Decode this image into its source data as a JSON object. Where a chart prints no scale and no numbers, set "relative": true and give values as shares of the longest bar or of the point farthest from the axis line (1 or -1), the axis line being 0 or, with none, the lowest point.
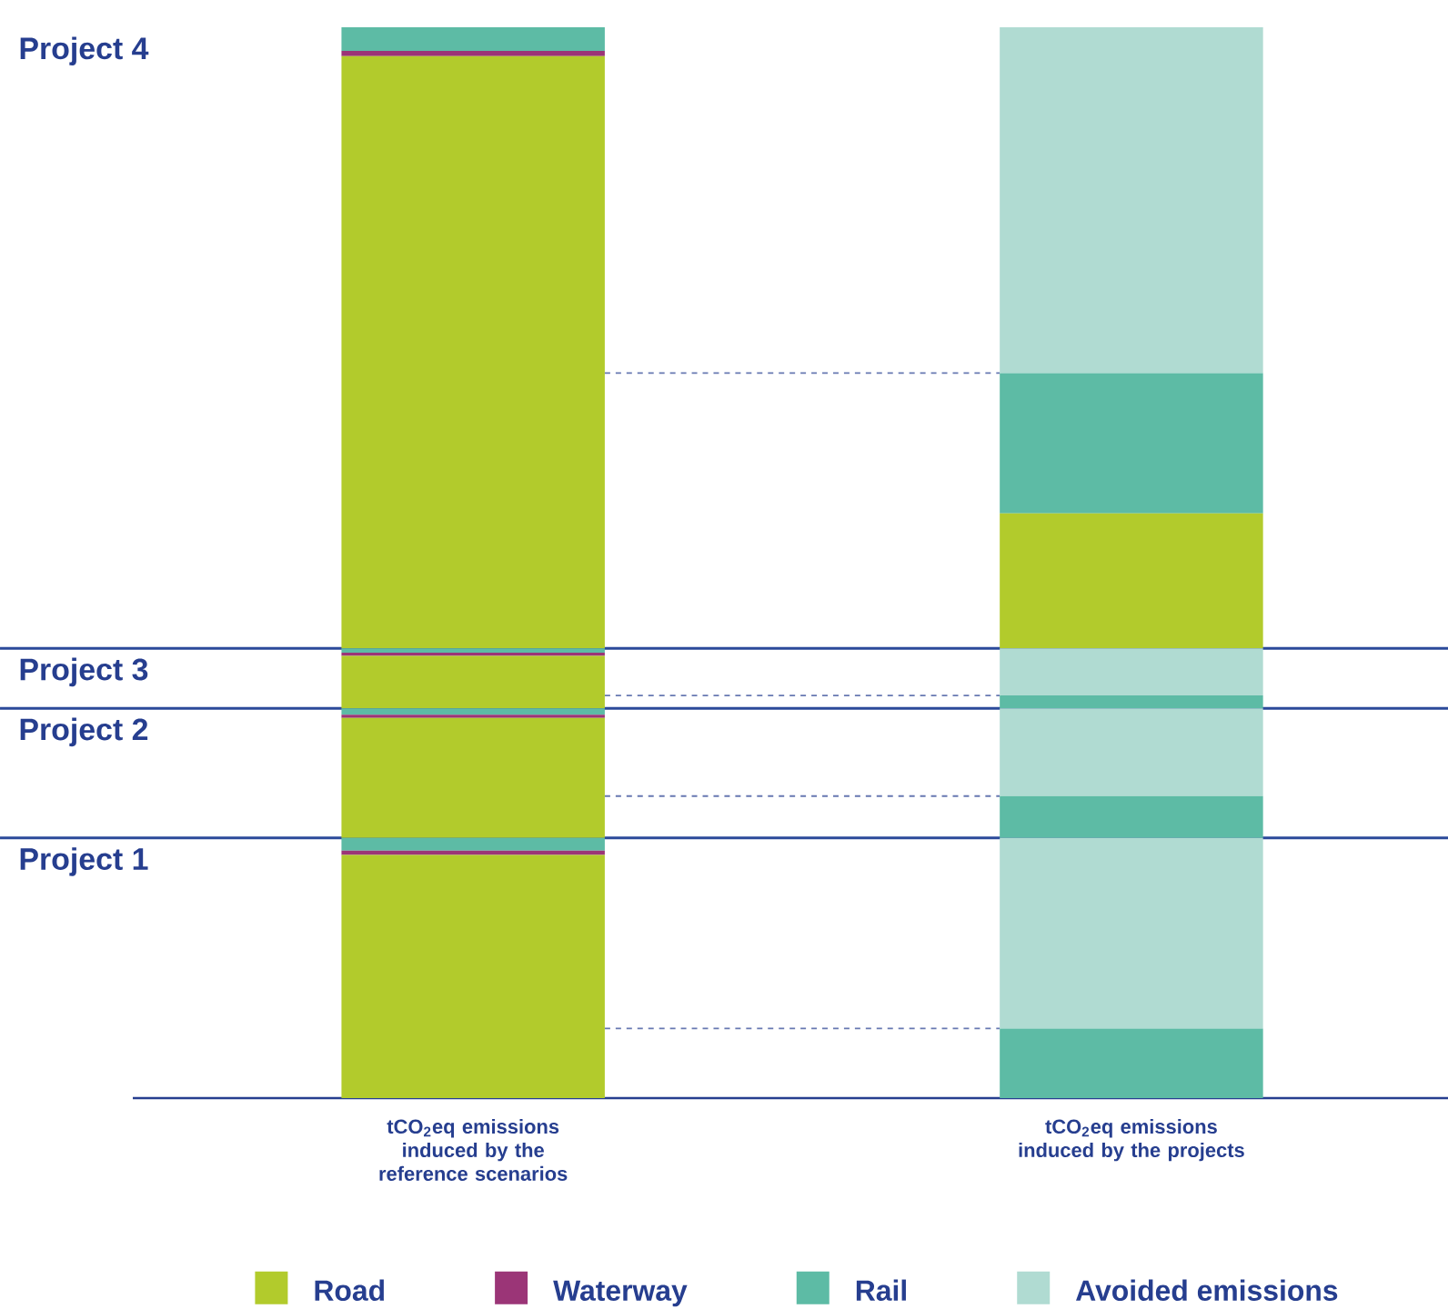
{
  "chart_data": {
    "type": "bar",
    "stacked": true,
    "relative": true,
    "legend": "bottom",
    "categories": [
      "tCO$_{2}$eq emissions induced by the reference scenarios",
      "tCO$_{2}$eq emissions induced by the projects"
    ],
    "series": [
      {
        "name": "Road",
        "color": "#b2cb2c",
        "values": [
          0.227,
          0
        ]
      },
      {
        "name": "Waterway",
        "color": "#9b3577",
        "values": [
          0.004,
          0
        ]
      },
      {
        "name": "Rail",
        "color": "#5dbba5",
        "values": [
          0.012,
          0.065
        ]
      },
      {
        "name": "Avoided emissions",
        "color": "#b0dbd2",
        "values": [
          0,
          0.178
        ]
      },
      {
        "color": "#b2cb2c",
        "values": [
          0.112,
          0
        ]
      },
      {
        "color": "#9b3577",
        "values": [
          0.003,
          0
        ]
      },
      {
        "color": "#5dbba5",
        "values": [
          0.006,
          0.039
        ]
      },
      {
        "color": "#b0dbd2",
        "values": [
          0,
          0.082
        ]
      },
      {
        "color": "#b2cb2c",
        "values": [
          0.049,
          0
        ]
      },
      {
        "color": "#9b3577",
        "values": [
          0.003,
          0
        ]
      },
      {
        "color": "#5dbba5",
        "values": [
          0.004,
          0.012
        ]
      },
      {
        "color": "#b0dbd2",
        "values": [
          0,
          0.044
        ]
      },
      {
        "color": "#b2cb2c",
        "values": [
          0.553,
          0.126
        ]
      },
      {
        "color": "#9b3577",
        "values": [
          0.005,
          0
        ]
      },
      {
        "color": "#5dbba5",
        "values": [
          0.022,
          0.131
        ]
      },
      {
        "color": "#b0dbd2",
        "values": [
          0,
          0.323
        ]
      }
    ],
    "ref_lines": [
      {
        "axis": "y",
        "value": 0.243,
        "color": "#2b4a9a",
        "line_style": "solid"
      },
      {
        "axis": "y",
        "value": 0.364,
        "color": "#2b4a9a",
        "line_style": "solid"
      },
      {
        "axis": "y",
        "value": 0.42,
        "color": "#2b4a9a",
        "line_style": "solid"
      },
      {
        "axis": "y",
        "value": 0.065,
        "color": "#6778b1",
        "line_style": "dashed"
      },
      {
        "axis": "y",
        "value": 0.282,
        "color": "#6778b1",
        "line_style": "dashed"
      },
      {
        "axis": "y",
        "value": 0.376,
        "color": "#6778b1",
        "line_style": "dashed"
      },
      {
        "axis": "y",
        "value": 0.677,
        "color": "#6778b1",
        "line_style": "dashed"
      }
    ],
    "annotations": [
      {
        "text": "Project 1",
        "y": 0.243
      },
      {
        "text": "Project 2",
        "y": 0.364
      },
      {
        "text": "Project 3",
        "y": 0.42
      },
      "Project 4"
    ]
  }
}
